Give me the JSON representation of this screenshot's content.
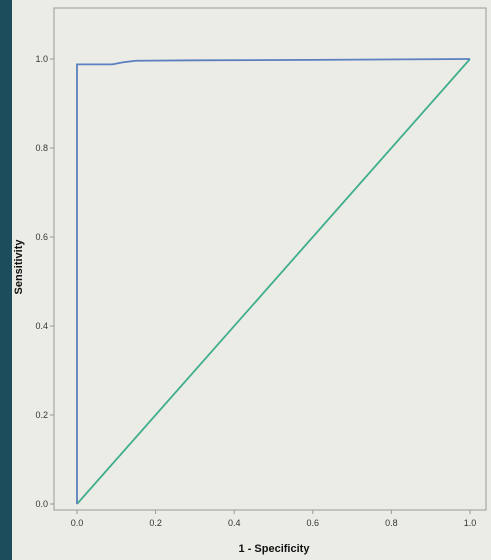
{
  "chart_data": {
    "type": "line",
    "title": "",
    "xlabel": "1 - Specificity",
    "ylabel": "Sensitivity",
    "xlim": [
      0.0,
      1.0
    ],
    "ylim": [
      0.0,
      1.0
    ],
    "x_ticks": [
      "0.0",
      "0.2",
      "0.4",
      "0.6",
      "0.8",
      "1.0"
    ],
    "y_ticks": [
      "0.0",
      "0.2",
      "0.4",
      "0.6",
      "0.8",
      "1.0"
    ],
    "grid": false,
    "legend": "none",
    "series": [
      {
        "color": "#5b7fbf",
        "points": [
          [
            0.0,
            0.0
          ],
          [
            0.0,
            0.988
          ],
          [
            0.09,
            0.988
          ],
          [
            0.12,
            0.993
          ],
          [
            0.15,
            0.996
          ],
          [
            0.3,
            0.997
          ],
          [
            0.6,
            0.998
          ],
          [
            1.0,
            1.0
          ]
        ]
      },
      {
        "color": "#3fae8c",
        "points": [
          [
            0.0,
            0.0
          ],
          [
            1.0,
            1.0
          ]
        ]
      }
    ]
  },
  "colors": {
    "background": "#1c4d5c",
    "panel": "#ecece7",
    "axis": "#999999"
  }
}
